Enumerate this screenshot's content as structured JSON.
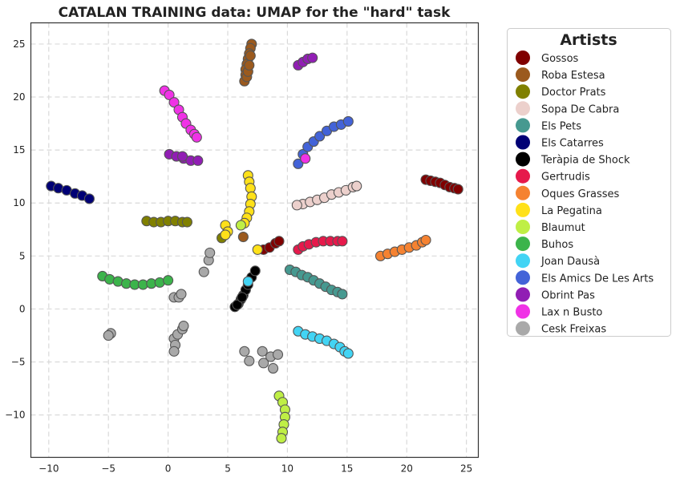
{
  "chart_data": {
    "type": "scatter",
    "title": "CATALAN TRAINING data: UMAP for the \"hard\" task",
    "xlabel": "",
    "ylabel": "",
    "xlim": [
      -11.5,
      26.0
    ],
    "ylim": [
      -14.0,
      27.0
    ],
    "xticks": [
      -10,
      -5,
      0,
      5,
      10,
      15,
      20,
      25
    ],
    "yticks": [
      -10,
      -5,
      0,
      5,
      10,
      15,
      20,
      25
    ],
    "grid": true,
    "legend_title": "Artists",
    "legend_position": "outside-right",
    "series": [
      {
        "name": "Gossos",
        "color": "#800000",
        "points": [
          [
            21.6,
            12.2
          ],
          [
            22.0,
            12.1
          ],
          [
            22.4,
            12.0
          ],
          [
            22.8,
            11.9
          ],
          [
            23.2,
            11.7
          ],
          [
            23.6,
            11.5
          ],
          [
            24.0,
            11.4
          ],
          [
            24.3,
            11.3
          ],
          [
            8.0,
            5.6
          ],
          [
            8.5,
            5.8
          ],
          [
            9.0,
            6.2
          ],
          [
            9.3,
            6.4
          ]
        ]
      },
      {
        "name": "Roba Estesa",
        "color": "#9b5a1e",
        "points": [
          [
            7.0,
            25.0
          ],
          [
            6.9,
            24.6
          ],
          [
            6.8,
            24.1
          ],
          [
            6.7,
            23.6
          ],
          [
            6.6,
            23.1
          ],
          [
            6.5,
            22.6
          ],
          [
            6.5,
            22.1
          ],
          [
            6.4,
            21.5
          ],
          [
            6.6,
            21.9
          ],
          [
            6.7,
            22.4
          ],
          [
            6.8,
            23.0
          ],
          [
            6.9,
            23.9
          ],
          [
            6.3,
            6.8
          ]
        ]
      },
      {
        "name": "Doctor Prats",
        "color": "#808000",
        "points": [
          [
            -1.8,
            8.3
          ],
          [
            -1.2,
            8.2
          ],
          [
            -0.6,
            8.2
          ],
          [
            0.0,
            8.3
          ],
          [
            0.6,
            8.3
          ],
          [
            1.2,
            8.2
          ],
          [
            1.6,
            8.2
          ],
          [
            4.5,
            6.7
          ]
        ]
      },
      {
        "name": "Sopa De Cabra",
        "color": "#ecd0cc",
        "points": [
          [
            11.3,
            9.9
          ],
          [
            11.9,
            10.1
          ],
          [
            12.5,
            10.3
          ],
          [
            13.1,
            10.5
          ],
          [
            13.7,
            10.8
          ],
          [
            14.3,
            11.0
          ],
          [
            14.9,
            11.2
          ],
          [
            15.5,
            11.5
          ],
          [
            15.8,
            11.6
          ],
          [
            10.8,
            9.8
          ]
        ]
      },
      {
        "name": "Els Pets",
        "color": "#469990",
        "points": [
          [
            10.2,
            3.7
          ],
          [
            10.7,
            3.5
          ],
          [
            11.2,
            3.2
          ],
          [
            11.7,
            3.0
          ],
          [
            12.2,
            2.7
          ],
          [
            12.7,
            2.4
          ],
          [
            13.2,
            2.1
          ],
          [
            13.7,
            1.8
          ],
          [
            14.2,
            1.6
          ],
          [
            14.6,
            1.4
          ]
        ]
      },
      {
        "name": "Els Catarres",
        "color": "#000075",
        "points": [
          [
            -9.8,
            11.6
          ],
          [
            -9.2,
            11.4
          ],
          [
            -8.5,
            11.2
          ],
          [
            -7.8,
            10.9
          ],
          [
            -7.2,
            10.7
          ],
          [
            -6.6,
            10.4
          ]
        ]
      },
      {
        "name": "Teràpia de Shock",
        "color": "#000000",
        "points": [
          [
            5.6,
            0.2
          ],
          [
            5.9,
            0.5
          ],
          [
            6.1,
            0.9
          ],
          [
            6.3,
            1.3
          ],
          [
            6.5,
            1.8
          ],
          [
            6.7,
            2.3
          ],
          [
            7.0,
            3.0
          ],
          [
            7.3,
            3.6
          ],
          [
            5.8,
            0.4
          ],
          [
            6.2,
            1.1
          ]
        ]
      },
      {
        "name": "Gertrudis",
        "color": "#e6194b",
        "points": [
          [
            10.9,
            5.6
          ],
          [
            11.3,
            5.9
          ],
          [
            11.8,
            6.1
          ],
          [
            12.4,
            6.3
          ],
          [
            13.0,
            6.4
          ],
          [
            13.6,
            6.4
          ],
          [
            14.2,
            6.4
          ],
          [
            14.6,
            6.4
          ]
        ]
      },
      {
        "name": "Oques Grasses",
        "color": "#f58231",
        "points": [
          [
            17.8,
            5.0
          ],
          [
            18.4,
            5.2
          ],
          [
            19.0,
            5.4
          ],
          [
            19.6,
            5.6
          ],
          [
            20.2,
            5.8
          ],
          [
            20.8,
            6.0
          ],
          [
            21.3,
            6.3
          ],
          [
            21.6,
            6.5
          ]
        ]
      },
      {
        "name": "La Pegatina",
        "color": "#ffe119",
        "points": [
          [
            6.7,
            12.6
          ],
          [
            6.8,
            12.0
          ],
          [
            6.9,
            11.4
          ],
          [
            7.0,
            10.6
          ],
          [
            6.9,
            9.9
          ],
          [
            6.8,
            9.2
          ],
          [
            6.6,
            8.6
          ],
          [
            6.4,
            8.1
          ],
          [
            4.8,
            7.9
          ],
          [
            5.0,
            7.3
          ],
          [
            4.8,
            7.0
          ],
          [
            7.5,
            5.6
          ]
        ]
      },
      {
        "name": "Blaumut",
        "color": "#bfef45",
        "points": [
          [
            9.3,
            -8.2
          ],
          [
            9.6,
            -8.8
          ],
          [
            9.8,
            -9.5
          ],
          [
            9.8,
            -10.2
          ],
          [
            9.7,
            -10.9
          ],
          [
            9.6,
            -11.6
          ],
          [
            9.5,
            -12.2
          ],
          [
            6.1,
            7.9
          ]
        ]
      },
      {
        "name": "Buhos",
        "color": "#3cb44b",
        "points": [
          [
            -5.5,
            3.1
          ],
          [
            -4.9,
            2.8
          ],
          [
            -4.2,
            2.6
          ],
          [
            -3.5,
            2.4
          ],
          [
            -2.8,
            2.3
          ],
          [
            -2.1,
            2.3
          ],
          [
            -1.4,
            2.4
          ],
          [
            -0.7,
            2.5
          ],
          [
            0.0,
            2.7
          ]
        ]
      },
      {
        "name": "Joan Dausà",
        "color": "#42d4f4",
        "points": [
          [
            10.9,
            -2.1
          ],
          [
            11.5,
            -2.4
          ],
          [
            12.1,
            -2.6
          ],
          [
            12.7,
            -2.8
          ],
          [
            13.3,
            -3.0
          ],
          [
            13.9,
            -3.3
          ],
          [
            14.4,
            -3.6
          ],
          [
            14.8,
            -4.0
          ],
          [
            15.1,
            -4.2
          ],
          [
            6.7,
            2.6
          ]
        ]
      },
      {
        "name": "Els Amics De Les Arts",
        "color": "#4363d8",
        "points": [
          [
            10.9,
            13.7
          ],
          [
            11.3,
            14.6
          ],
          [
            11.7,
            15.3
          ],
          [
            12.2,
            15.8
          ],
          [
            12.7,
            16.3
          ],
          [
            13.3,
            16.8
          ],
          [
            13.9,
            17.2
          ],
          [
            14.5,
            17.4
          ],
          [
            15.1,
            17.7
          ]
        ]
      },
      {
        "name": "Obrint Pas",
        "color": "#911eb4",
        "points": [
          [
            0.1,
            14.6
          ],
          [
            0.7,
            14.4
          ],
          [
            1.3,
            14.2
          ],
          [
            1.9,
            14.0
          ],
          [
            2.5,
            14.0
          ],
          [
            1.2,
            14.4
          ],
          [
            10.9,
            23.0
          ],
          [
            11.3,
            23.3
          ],
          [
            11.7,
            23.6
          ],
          [
            12.1,
            23.7
          ]
        ]
      },
      {
        "name": "Lax n Busto",
        "color": "#f032e6",
        "points": [
          [
            -0.3,
            20.6
          ],
          [
            0.1,
            20.2
          ],
          [
            0.5,
            19.5
          ],
          [
            0.9,
            18.8
          ],
          [
            1.2,
            18.1
          ],
          [
            1.5,
            17.5
          ],
          [
            1.9,
            16.9
          ],
          [
            2.2,
            16.5
          ],
          [
            2.4,
            16.2
          ],
          [
            11.5,
            14.2
          ]
        ]
      },
      {
        "name": "Cesk Freixas",
        "color": "#a9a9a9",
        "points": [
          [
            -4.8,
            -2.3
          ],
          [
            -5.0,
            -2.5
          ],
          [
            0.5,
            1.1
          ],
          [
            0.9,
            1.1
          ],
          [
            1.1,
            1.4
          ],
          [
            0.5,
            -2.8
          ],
          [
            0.6,
            -3.4
          ],
          [
            0.5,
            -4.0
          ],
          [
            0.8,
            -2.4
          ],
          [
            1.2,
            -1.9
          ],
          [
            1.3,
            -1.6
          ],
          [
            3.0,
            3.5
          ],
          [
            3.4,
            4.6
          ],
          [
            3.5,
            5.3
          ],
          [
            6.4,
            -4.0
          ],
          [
            6.8,
            -4.9
          ],
          [
            7.9,
            -4.0
          ],
          [
            8.0,
            -5.1
          ],
          [
            8.6,
            -4.5
          ],
          [
            9.2,
            -4.3
          ],
          [
            8.8,
            -5.6
          ]
        ]
      }
    ]
  }
}
